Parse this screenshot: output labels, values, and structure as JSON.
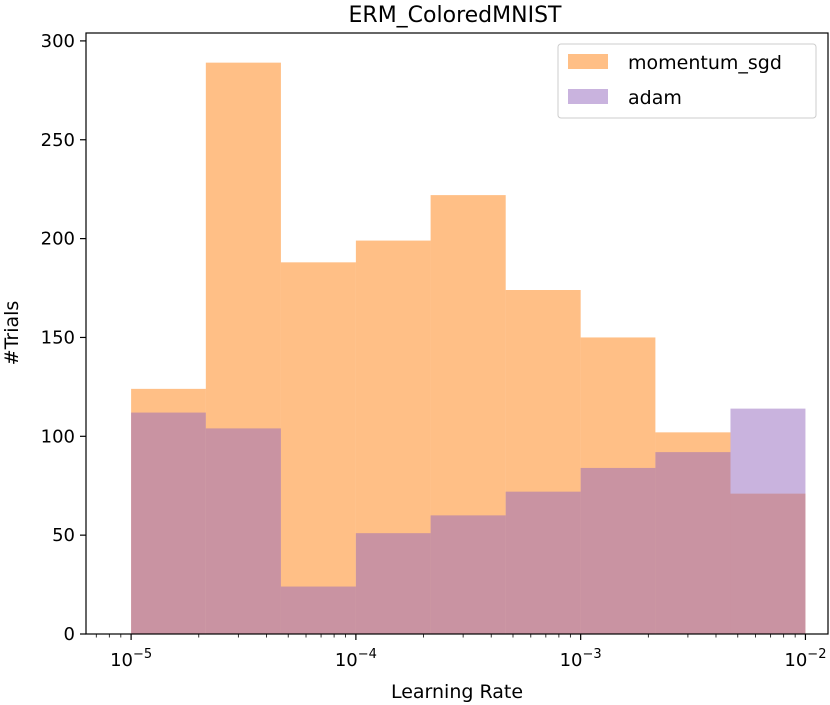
{
  "chart_data": {
    "type": "histogram",
    "title": "ERM_ColoredMNIST",
    "xlabel": "Learning Rate",
    "ylabel": "#Trials",
    "xscale": "log",
    "xlim": [
      6.3e-06,
      0.0126
    ],
    "ylim": [
      0,
      304
    ],
    "yticks": [
      0,
      50,
      100,
      150,
      200,
      250,
      300
    ],
    "xticks": [
      {
        "value": 1e-05,
        "base": "10",
        "exp": "−5"
      },
      {
        "value": 0.0001,
        "base": "10",
        "exp": "−4"
      },
      {
        "value": 0.001,
        "base": "10",
        "exp": "−3"
      },
      {
        "value": 0.01,
        "base": "10",
        "exp": "−2"
      }
    ],
    "bin_edges": [
      1e-05,
      2.15e-05,
      4.64e-05,
      0.0001,
      0.000215,
      0.000464,
      0.001,
      0.00215,
      0.00464,
      0.01
    ],
    "series": [
      {
        "name": "momentum_sgd",
        "color": "#ff7f0e",
        "opacity": 0.5,
        "counts": [
          124,
          289,
          188,
          199,
          222,
          174,
          150,
          102,
          71
        ]
      },
      {
        "name": "adam",
        "color": "#9467bd",
        "opacity": 0.5,
        "counts": [
          112,
          104,
          24,
          51,
          60,
          72,
          84,
          92,
          114
        ]
      }
    ],
    "legend": {
      "position": "top-right"
    },
    "grid": false
  }
}
